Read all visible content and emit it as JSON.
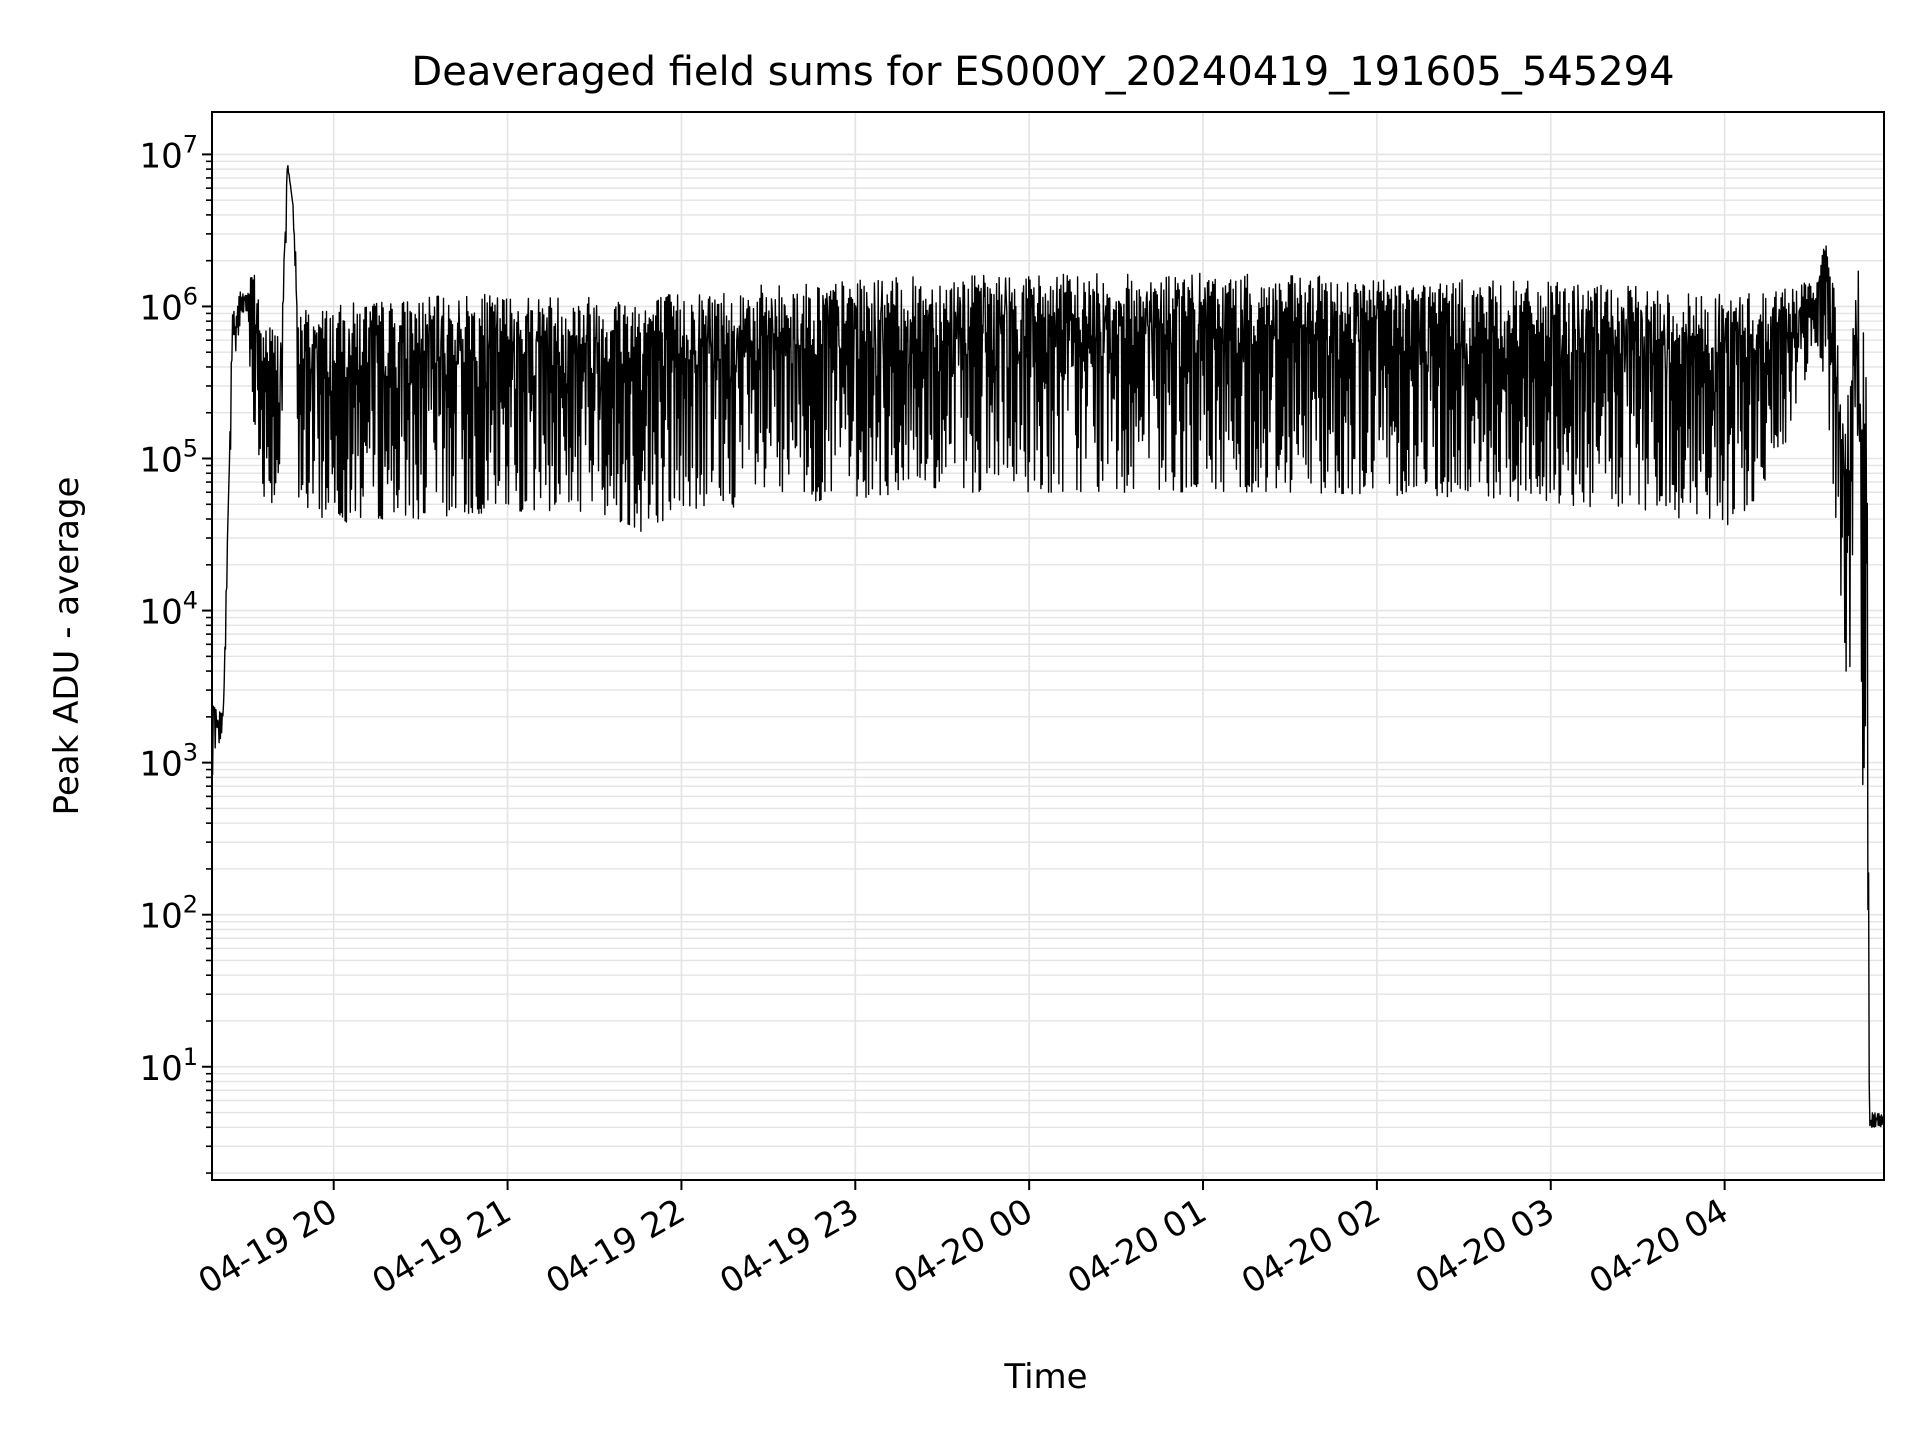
{
  "chart_data": {
    "type": "line",
    "title": "Deaveraged field sums for ES000Y_20240419_191605_545294",
    "xlabel": "Time",
    "ylabel": "Peak ADU - average",
    "y_scale": "log",
    "ylim": [
      1.8,
      19000000
    ],
    "xlim": [
      "2024-04-19 19:18",
      "2024-04-20 04:55"
    ],
    "grid": true,
    "x_ticks": [
      "04-19 20",
      "04-19 21",
      "04-19 22",
      "04-19 23",
      "04-20 00",
      "04-20 01",
      "04-20 02",
      "04-20 03",
      "04-20 04"
    ],
    "x_tick_values": [
      "2024-04-19 20:00",
      "2024-04-19 21:00",
      "2024-04-19 22:00",
      "2024-04-19 23:00",
      "2024-04-20 00:00",
      "2024-04-20 01:00",
      "2024-04-20 02:00",
      "2024-04-20 03:00",
      "2024-04-20 04:00"
    ],
    "y_ticks": [
      {
        "base": "10",
        "exp": "1",
        "value": 10
      },
      {
        "base": "10",
        "exp": "2",
        "value": 100
      },
      {
        "base": "10",
        "exp": "3",
        "value": 1000
      },
      {
        "base": "10",
        "exp": "4",
        "value": 10000
      },
      {
        "base": "10",
        "exp": "5",
        "value": 100000
      },
      {
        "base": "10",
        "exp": "6",
        "value": 1000000
      },
      {
        "base": "10",
        "exp": "7",
        "value": 10000000
      }
    ],
    "line_color": "#000000",
    "series": [
      {
        "x": [
          "2024-04-19 19:18",
          "2024-04-19 19:20",
          "2024-04-19 19:22",
          "2024-04-19 19:25",
          "2024-04-19 19:28",
          "2024-04-19 19:30",
          "2024-04-19 19:32",
          "2024-04-19 19:35",
          "2024-04-19 19:38",
          "2024-04-19 19:40",
          "2024-04-19 19:42",
          "2024-04-19 19:44",
          "2024-04-19 19:46",
          "2024-04-19 19:48",
          "2024-04-19 19:50",
          "2024-04-19 19:52",
          "2024-04-19 19:54",
          "2024-04-19 19:56",
          "2024-04-19 19:58",
          "2024-04-19 20:00",
          "2024-04-19 20:05",
          "2024-04-19 20:10",
          "2024-04-19 20:15",
          "2024-04-19 20:20",
          "2024-04-19 20:30",
          "2024-04-19 20:45",
          "2024-04-19 21:00",
          "2024-04-19 21:30",
          "2024-04-19 21:46",
          "2024-04-19 22:00",
          "2024-04-19 22:30",
          "2024-04-19 23:00",
          "2024-04-19 23:30",
          "2024-04-20 00:00",
          "2024-04-20 00:30",
          "2024-04-20 01:00",
          "2024-04-20 01:30",
          "2024-04-20 02:00",
          "2024-04-20 02:30",
          "2024-04-20 03:00",
          "2024-04-20 03:30",
          "2024-04-20 04:00",
          "2024-04-20 04:15",
          "2024-04-20 04:25",
          "2024-04-20 04:31",
          "2024-04-20 04:35",
          "2024-04-20 04:38",
          "2024-04-20 04:42",
          "2024-04-20 04:46",
          "2024-04-20 04:49",
          "2024-04-20 04:50",
          "2024-04-20 04:51",
          "2024-04-20 04:55"
        ],
        "min": [
          650,
          1200,
          1800,
          300000,
          800000,
          900000,
          200000,
          60000,
          50000,
          50000,
          50000,
          8500000,
          4500000,
          50000,
          45000,
          42000,
          40000,
          40000,
          40000,
          40000,
          38000,
          40000,
          40000,
          40000,
          40000,
          42000,
          45000,
          45000,
          33000,
          45000,
          50000,
          55000,
          60000,
          60000,
          60000,
          60000,
          60000,
          58000,
          55000,
          50000,
          45000,
          35000,
          60000,
          200000,
          600000,
          300000,
          50000,
          2000,
          1000,
          400,
          4,
          4,
          4
        ],
        "max": [
          3000,
          2000,
          2500,
          900000,
          1300000,
          1200000,
          2300000,
          800000,
          800000,
          700000,
          800000,
          9000000,
          4600000,
          950000,
          1000000,
          1000000,
          1000000,
          1000000,
          1000000,
          1000000,
          1050000,
          1100000,
          1100000,
          1100000,
          1150000,
          1200000,
          1200000,
          1200000,
          1200000,
          1250000,
          1400000,
          1500000,
          1600000,
          1650000,
          1650000,
          1650000,
          1600000,
          1550000,
          1500000,
          1450000,
          1350000,
          1200000,
          1300000,
          1400000,
          1500000,
          2700000,
          1300000,
          200000,
          2300000,
          1500000,
          4,
          5,
          5
        ]
      }
    ]
  }
}
